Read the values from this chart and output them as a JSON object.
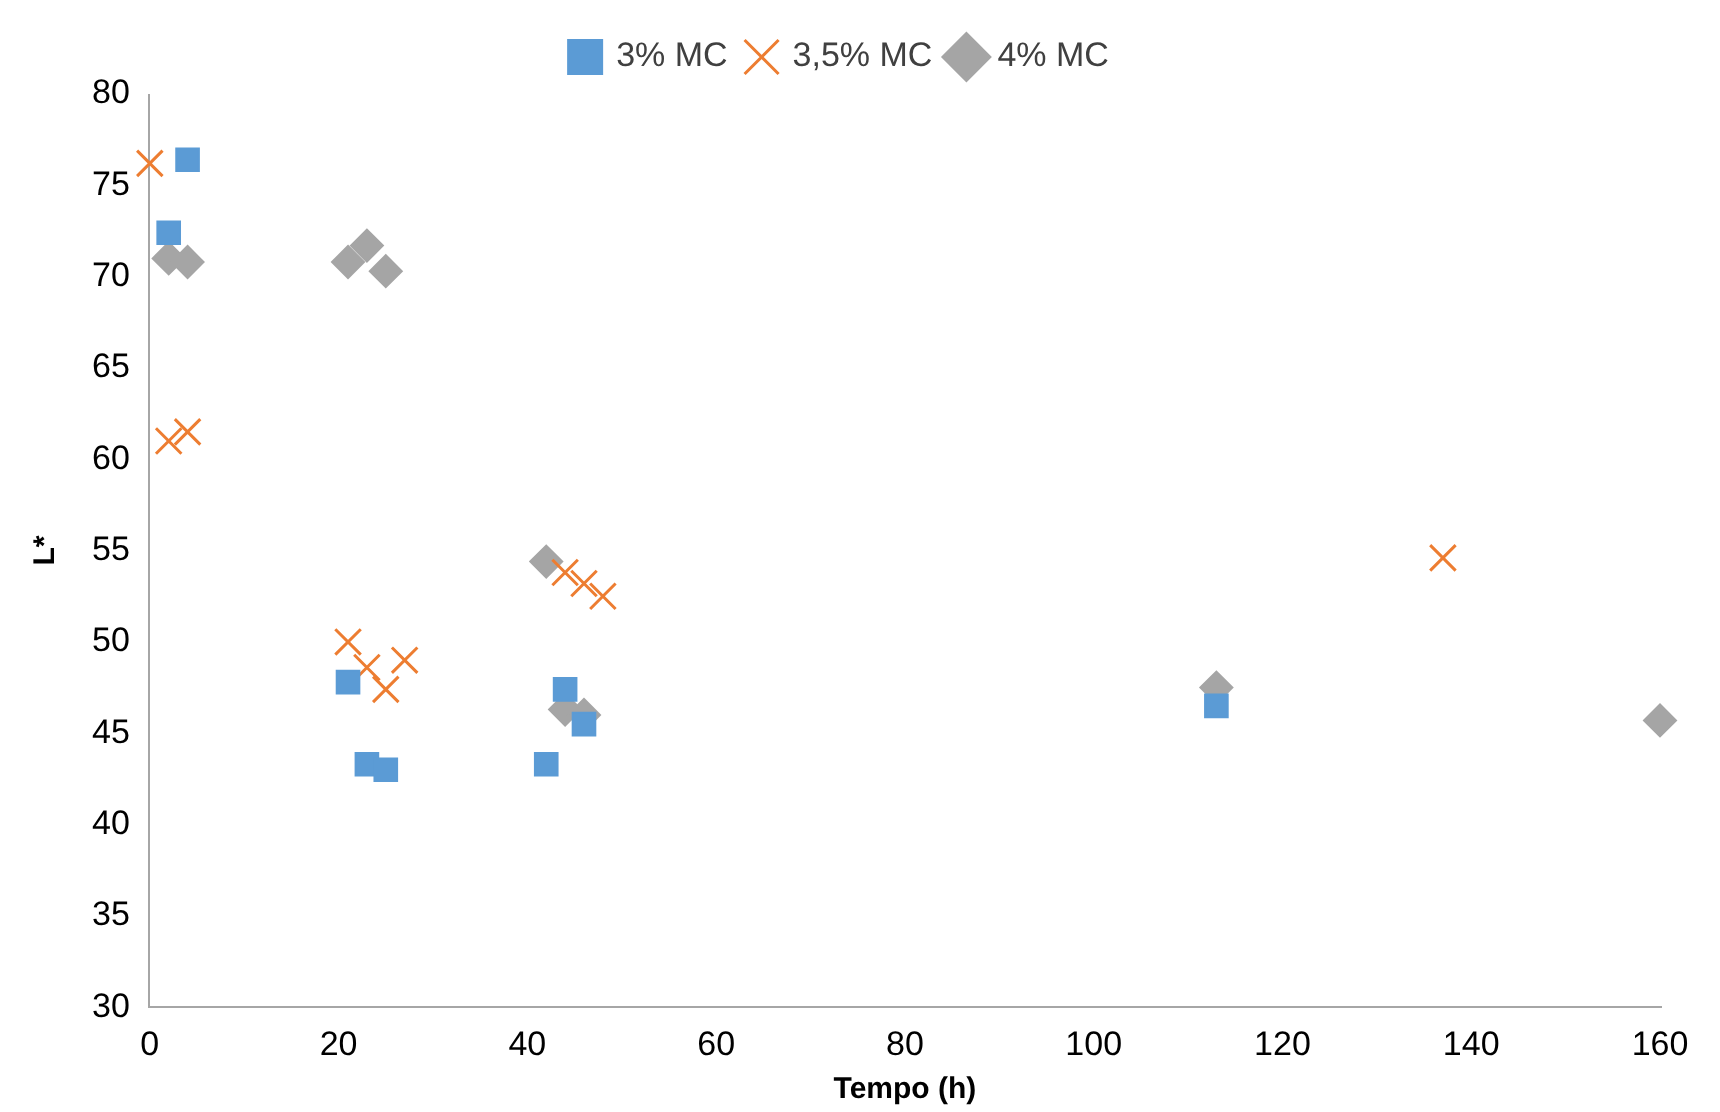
{
  "chart_data": {
    "type": "scatter",
    "xlabel": "Tempo (h)",
    "ylabel": "L*",
    "xlim": [
      0,
      160
    ],
    "xticks": [
      0,
      20,
      40,
      60,
      80,
      100,
      120,
      140,
      160
    ],
    "ylim": [
      30,
      80
    ],
    "yticks": [
      30,
      35,
      40,
      45,
      50,
      55,
      60,
      65,
      70,
      75,
      80
    ],
    "grid": false,
    "legend": "top",
    "series": [
      {
        "name": "3% MC",
        "color": "#5b9bd5",
        "marker": "square",
        "x": [
          2,
          4,
          21,
          23,
          25,
          42,
          44,
          46,
          113
        ],
        "values": [
          72.4,
          76.4,
          47.8,
          43.3,
          43,
          43.3,
          47.4,
          45.5,
          46.5
        ]
      },
      {
        "name": "3,5% MC",
        "color": "#ed7d31",
        "marker": "cross",
        "x": [
          0,
          2,
          4,
          21,
          23,
          25,
          27,
          44,
          46,
          48,
          137
        ],
        "values": [
          76.2,
          61,
          61.5,
          50,
          48.6,
          47.4,
          49,
          53.8,
          53.2,
          52.5,
          54.6
        ]
      },
      {
        "name": "4% MC",
        "color": "#a5a5a5",
        "marker": "diamond",
        "x": [
          2,
          4,
          21,
          23,
          25,
          42,
          44,
          46,
          113,
          160
        ],
        "values": [
          71,
          70.8,
          70.8,
          71.7,
          70.3,
          54.4,
          46.3,
          46,
          47.5,
          45.7
        ]
      }
    ]
  }
}
